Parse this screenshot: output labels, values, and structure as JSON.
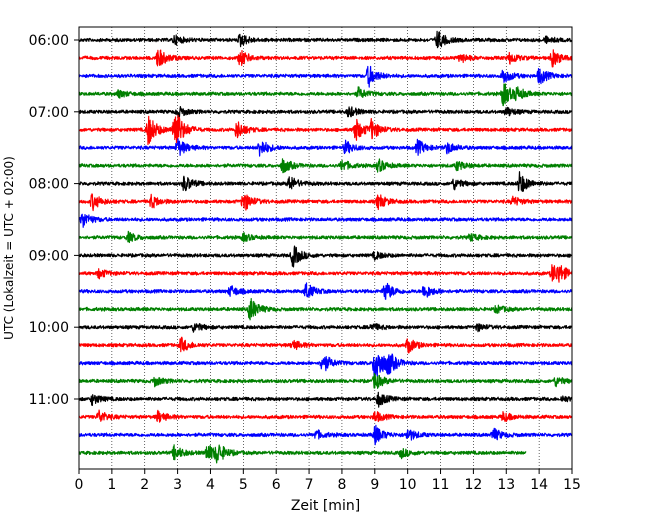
{
  "chart_data": {
    "type": "line",
    "xlabel": "Zeit  [min]",
    "ylabel": "UTC (Lokalzeit = UTC + 02:00)",
    "xlim": [
      0,
      15
    ],
    "x_ticks": [
      0,
      1,
      2,
      3,
      4,
      5,
      6,
      7,
      8,
      9,
      10,
      11,
      12,
      13,
      14,
      15
    ],
    "y_ticks": [
      "06:00",
      "07:00",
      "08:00",
      "09:00",
      "10:00",
      "11:00"
    ],
    "grid": "x-dotted",
    "legend": "none",
    "trace_start_time": "06:00",
    "trace_interval_minutes": 15,
    "last_trace_end_min": 13.6,
    "trace_colors": [
      "#000000",
      "#ff0000",
      "#0000ff",
      "#008000"
    ],
    "series": [
      {
        "time": "06:00",
        "events": [
          [
            2.9,
            0.5
          ],
          [
            4.9,
            0.7
          ],
          [
            10.9,
            1.0
          ],
          [
            14.2,
            0.3
          ]
        ]
      },
      {
        "time": "06:15",
        "events": [
          [
            2.4,
            1.1
          ],
          [
            4.9,
            0.9
          ],
          [
            11.6,
            0.5
          ],
          [
            13.1,
            0.6
          ],
          [
            14.4,
            0.9
          ]
        ]
      },
      {
        "time": "06:30",
        "events": [
          [
            8.8,
            1.2
          ],
          [
            12.9,
            0.8
          ],
          [
            14.0,
            0.9
          ]
        ]
      },
      {
        "time": "06:45",
        "events": [
          [
            1.2,
            0.4
          ],
          [
            8.5,
            0.6
          ],
          [
            12.9,
            1.3
          ],
          [
            13.3,
            0.6
          ]
        ]
      },
      {
        "time": "07:00",
        "events": [
          [
            3.0,
            0.6
          ],
          [
            8.2,
            0.6
          ],
          [
            13.0,
            0.5
          ]
        ]
      },
      {
        "time": "07:15",
        "events": [
          [
            2.1,
            1.7
          ],
          [
            2.9,
            2.6
          ],
          [
            4.8,
            1.0
          ],
          [
            8.4,
            1.3
          ],
          [
            8.9,
            1.0
          ]
        ]
      },
      {
        "time": "07:30",
        "events": [
          [
            3.0,
            1.0
          ],
          [
            5.5,
            1.0
          ],
          [
            8.1,
            0.7
          ],
          [
            10.3,
            0.8
          ],
          [
            11.2,
            0.6
          ]
        ]
      },
      {
        "time": "07:45",
        "events": [
          [
            6.2,
            0.8
          ],
          [
            8.0,
            0.6
          ],
          [
            9.1,
            0.7
          ],
          [
            11.5,
            0.5
          ]
        ]
      },
      {
        "time": "08:00",
        "events": [
          [
            3.2,
            0.9
          ],
          [
            6.4,
            0.8
          ],
          [
            11.4,
            0.6
          ],
          [
            13.4,
            1.2
          ]
        ]
      },
      {
        "time": "08:15",
        "events": [
          [
            0.4,
            0.9
          ],
          [
            2.2,
            0.7
          ],
          [
            5.0,
            1.1
          ],
          [
            9.1,
            0.8
          ],
          [
            13.2,
            0.5
          ]
        ]
      },
      {
        "time": "08:30",
        "events": [
          [
            0.1,
            0.9
          ]
        ]
      },
      {
        "time": "08:45",
        "events": [
          [
            1.5,
            0.5
          ],
          [
            5.0,
            0.4
          ],
          [
            11.9,
            0.4
          ]
        ]
      },
      {
        "time": "09:00",
        "events": [
          [
            6.5,
            1.2
          ],
          [
            9.0,
            0.4
          ]
        ]
      },
      {
        "time": "09:15",
        "events": [
          [
            0.6,
            0.5
          ],
          [
            14.4,
            1.0
          ],
          [
            14.6,
            0.7
          ]
        ]
      },
      {
        "time": "09:30",
        "events": [
          [
            4.6,
            0.6
          ],
          [
            6.9,
            0.9
          ],
          [
            9.3,
            1.1
          ],
          [
            10.5,
            0.8
          ]
        ]
      },
      {
        "time": "09:45",
        "events": [
          [
            5.2,
            1.3
          ],
          [
            12.7,
            0.4
          ]
        ]
      },
      {
        "time": "10:00",
        "events": [
          [
            3.5,
            0.5
          ],
          [
            8.9,
            0.4
          ],
          [
            12.1,
            0.4
          ]
        ]
      },
      {
        "time": "10:15",
        "events": [
          [
            3.1,
            0.8
          ],
          [
            6.5,
            0.5
          ],
          [
            10.0,
            0.8
          ]
        ]
      },
      {
        "time": "10:30",
        "events": [
          [
            7.4,
            1.1
          ],
          [
            9.0,
            2.5
          ],
          [
            9.4,
            1.0
          ]
        ]
      },
      {
        "time": "10:45",
        "events": [
          [
            2.3,
            0.5
          ],
          [
            9.0,
            0.9
          ],
          [
            14.5,
            0.5
          ]
        ]
      },
      {
        "time": "11:00",
        "events": [
          [
            0.4,
            0.6
          ],
          [
            9.1,
            0.8
          ],
          [
            14.7,
            0.3
          ]
        ]
      },
      {
        "time": "11:15",
        "events": [
          [
            0.6,
            0.7
          ],
          [
            2.4,
            0.6
          ],
          [
            9.0,
            0.6
          ],
          [
            12.9,
            0.5
          ]
        ]
      },
      {
        "time": "11:30",
        "events": [
          [
            7.2,
            0.5
          ],
          [
            9.0,
            1.0
          ],
          [
            10.0,
            0.7
          ],
          [
            12.6,
            0.7
          ]
        ]
      },
      {
        "time": "11:45",
        "events": [
          [
            2.9,
            0.8
          ],
          [
            3.9,
            1.0
          ],
          [
            4.2,
            1.0
          ],
          [
            9.8,
            0.5
          ]
        ]
      }
    ]
  }
}
